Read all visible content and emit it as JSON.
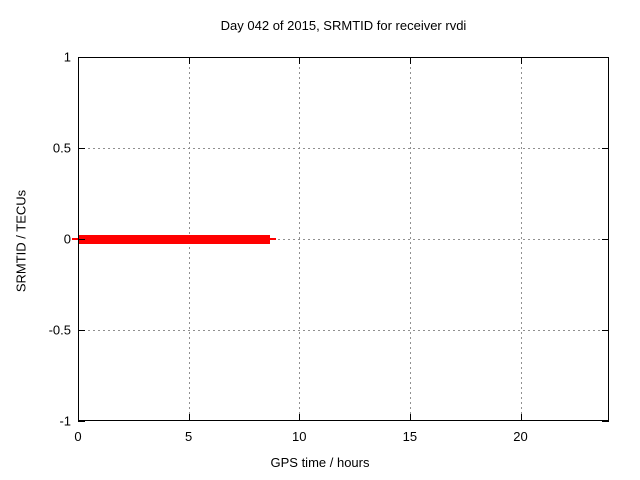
{
  "chart_data": {
    "type": "line",
    "title": "Day 042 of 2015, SRMTID for receiver rvdi",
    "xlabel": "GPS time / hours",
    "ylabel": "SRMTID / TECUs",
    "xlim": [
      0,
      24
    ],
    "ylim": [
      -1,
      1
    ],
    "xticks": [
      0,
      5,
      10,
      15,
      20
    ],
    "xtick_labels": [
      "0",
      "5",
      "10",
      "15",
      "20"
    ],
    "yticks": [
      -1,
      -0.5,
      0,
      0.5,
      1
    ],
    "ytick_labels": [
      "-1",
      "-0.5",
      "0",
      "0.5",
      "1"
    ],
    "grid": true,
    "legend": "none",
    "background": "#ffffff",
    "border_color": "#000000",
    "grid_color": "#909090",
    "series": [
      {
        "name": "SRMTID",
        "color": "#ff0000",
        "shape": "flat horizontal thick line",
        "y_value_tecus": 0,
        "x_start_hours": 0,
        "x_end_hours": 8.7,
        "segments": [
          {
            "x1": -0.25,
            "x2": 8.95,
            "y": 0,
            "thickness_px": 2
          },
          {
            "x1": 0,
            "x2": 8.7,
            "y": 0,
            "thickness_px": 9
          }
        ]
      }
    ]
  }
}
